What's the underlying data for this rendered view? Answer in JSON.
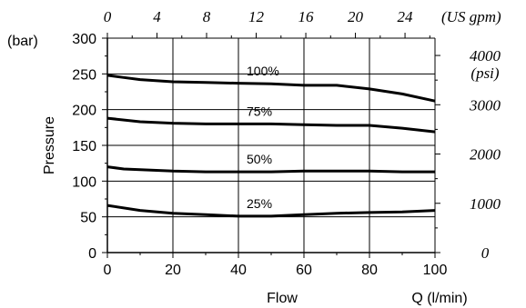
{
  "chart_data": {
    "type": "line",
    "xlabel": "Flow",
    "xlabel_right": "Q (l/min)",
    "ylabel": "Pressure",
    "ylabel_unit": "(bar)",
    "xlim": [
      0,
      100
    ],
    "ylim": [
      0,
      300
    ],
    "x_ticks": [
      "0",
      "20",
      "40",
      "60",
      "80",
      "100"
    ],
    "y_ticks": [
      "0",
      "50",
      "100",
      "150",
      "200",
      "250",
      "300"
    ],
    "top_axis": {
      "label": "(US gpm)",
      "ticks": [
        "0",
        "4",
        "8",
        "12",
        "16",
        "20",
        "24"
      ],
      "tick_values_lmin": [
        0,
        15.14,
        30.28,
        45.42,
        60.57,
        75.71,
        90.85
      ]
    },
    "right_axis": {
      "label": "(psi)",
      "ticks": [
        "0",
        "1000",
        "2000",
        "3000",
        "4000"
      ],
      "tick_values_bar": [
        0,
        68.95,
        137.9,
        206.84,
        275.79
      ]
    },
    "grid": true,
    "series": [
      {
        "name": "100%",
        "x": [
          0,
          5,
          10,
          20,
          30,
          40,
          50,
          60,
          70,
          80,
          90,
          100
        ],
        "y": [
          248,
          245,
          242,
          239,
          238,
          237,
          236,
          234,
          234,
          229,
          222,
          212
        ]
      },
      {
        "name": "75%",
        "x": [
          0,
          10,
          20,
          30,
          40,
          50,
          60,
          70,
          80,
          90,
          100
        ],
        "y": [
          188,
          183,
          181,
          180,
          180,
          180,
          179,
          178,
          178,
          174,
          169
        ]
      },
      {
        "name": "50%",
        "x": [
          0,
          5,
          10,
          20,
          30,
          40,
          50,
          60,
          70,
          80,
          90,
          100
        ],
        "y": [
          120,
          117,
          116,
          114,
          113,
          113,
          113,
          114,
          114,
          114,
          113,
          113
        ]
      },
      {
        "name": "25%",
        "x": [
          0,
          10,
          20,
          30,
          40,
          50,
          60,
          70,
          80,
          90,
          100
        ],
        "y": [
          66,
          59,
          55,
          53,
          51,
          51,
          53,
          55,
          56,
          57,
          59
        ]
      }
    ]
  }
}
